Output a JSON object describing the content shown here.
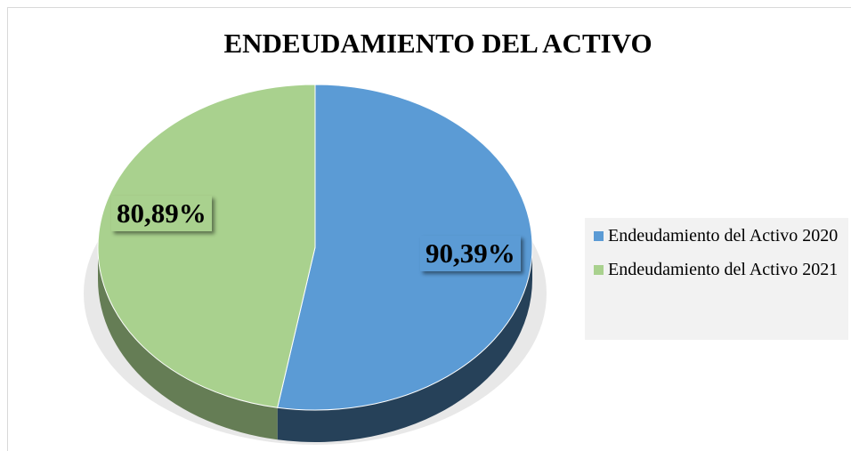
{
  "chart_data": {
    "type": "pie",
    "title": "ENDEUDAMIENTO DEL ACTIVO",
    "categories": [
      "Endeudamiento del Activo 2020",
      "Endeudamiento del Activo 2021"
    ],
    "values": [
      90.39,
      80.89
    ],
    "value_labels": [
      "90,39%",
      "80,89%"
    ],
    "colors": [
      "#5b9bd5",
      "#a9d18e"
    ],
    "legend": "right"
  }
}
